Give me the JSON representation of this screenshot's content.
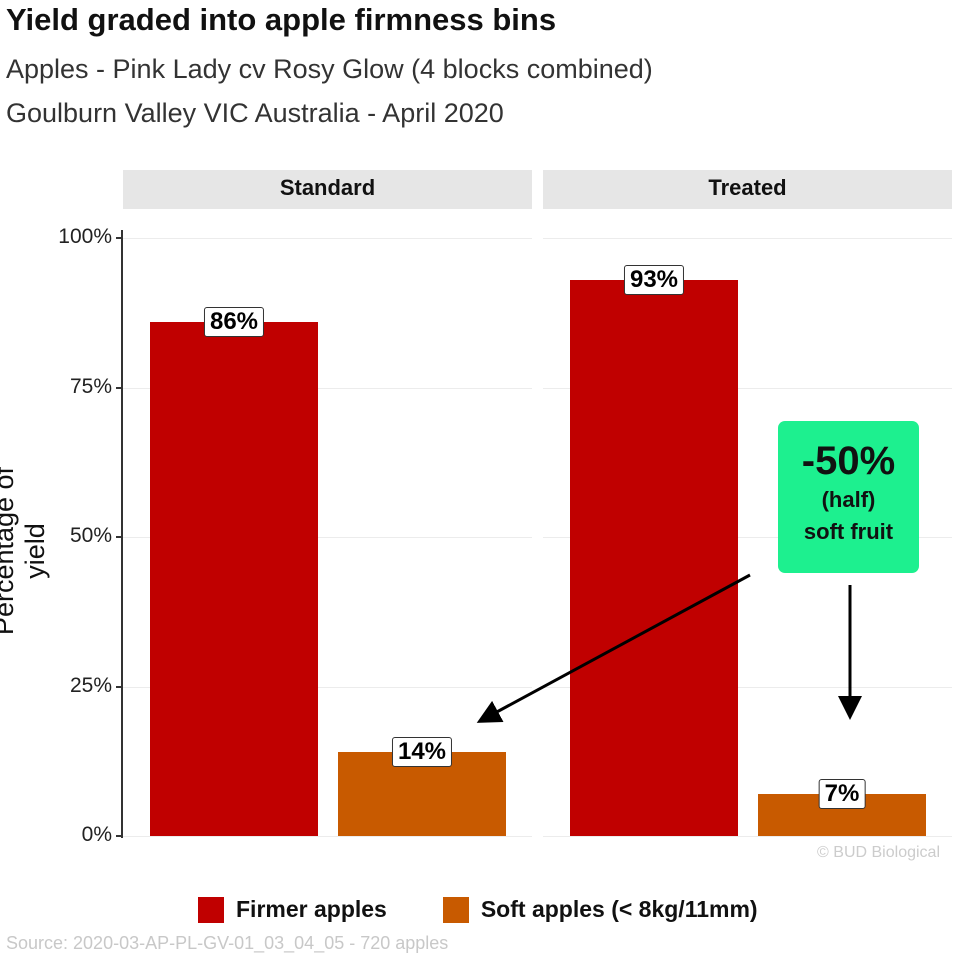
{
  "chart_data": {
    "type": "bar",
    "title": "Yield graded into apple firmness bins",
    "subtitle_lines": [
      "Apples - Pink Lady cv Rosy Glow (4 blocks combined)",
      "Goulburn Valley VIC Australia - April 2020"
    ],
    "ylabel": "Percentage of yield",
    "ylim": [
      0,
      100
    ],
    "yticks": [
      "0%",
      "25%",
      "50%",
      "75%",
      "100%"
    ],
    "panels": [
      {
        "name": "Standard",
        "values": [
          86,
          14
        ],
        "labels": [
          "86%",
          "14%"
        ]
      },
      {
        "name": "Treated",
        "values": [
          93,
          7
        ],
        "labels": [
          "93%",
          "7%"
        ]
      }
    ],
    "series": [
      {
        "name": "Firmer apples",
        "color": "#c00000"
      },
      {
        "name": "Soft apples (< 8kg/11mm)",
        "color": "#c85a00"
      }
    ],
    "annotation": {
      "big": "-50%",
      "line2": "(half)",
      "line3": "soft fruit",
      "color": "#1df08f"
    },
    "copyright": "© BUD Biological",
    "source": "Source: 2020-03-AP-PL-GV-01_03_04_05 - 720 apples",
    "legend_position": "bottom"
  }
}
